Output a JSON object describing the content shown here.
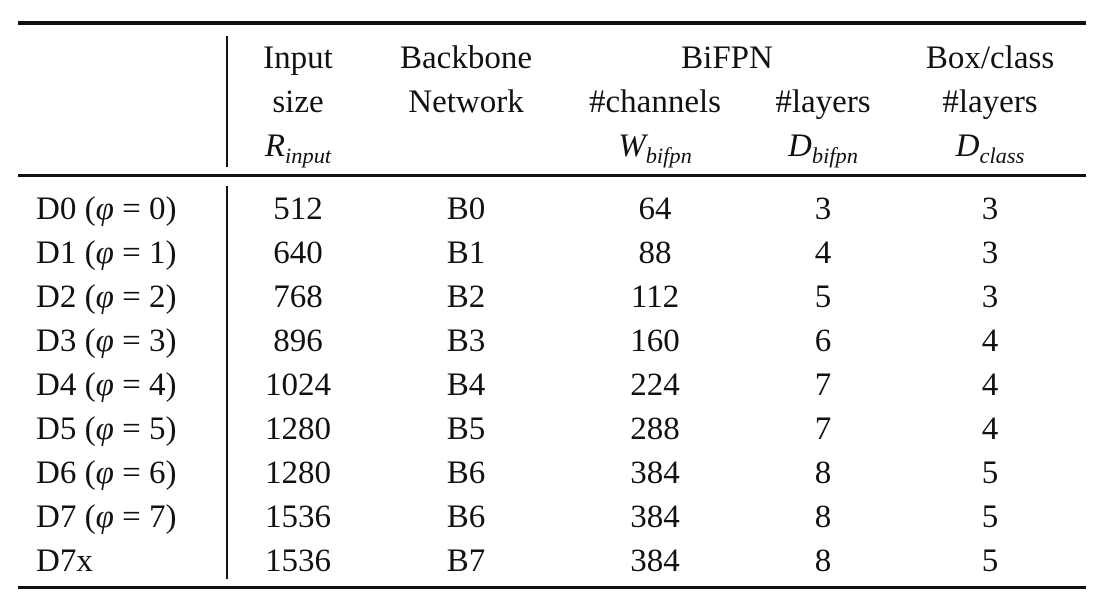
{
  "table": {
    "header": {
      "input": {
        "line1": "Input",
        "line2": "size",
        "sym": "R",
        "sub": "input"
      },
      "backbone": {
        "line1": "Backbone",
        "line2": "Network"
      },
      "bifpn": {
        "group": "BiFPN",
        "channels": {
          "label": "#channels",
          "sym": "W",
          "sub": "bifpn"
        },
        "layers": {
          "label": "#layers",
          "sym": "D",
          "sub": "bifpn"
        }
      },
      "boxclass": {
        "line1": "Box/class",
        "line2": "#layers",
        "sym": "D",
        "sub": "class"
      }
    },
    "rows": [
      {
        "model": "D0",
        "phi": "0",
        "input": "512",
        "backbone": "B0",
        "channels": "64",
        "bifpn_layers": "3",
        "class_layers": "3"
      },
      {
        "model": "D1",
        "phi": "1",
        "input": "640",
        "backbone": "B1",
        "channels": "88",
        "bifpn_layers": "4",
        "class_layers": "3"
      },
      {
        "model": "D2",
        "phi": "2",
        "input": "768",
        "backbone": "B2",
        "channels": "112",
        "bifpn_layers": "5",
        "class_layers": "3"
      },
      {
        "model": "D3",
        "phi": "3",
        "input": "896",
        "backbone": "B3",
        "channels": "160",
        "bifpn_layers": "6",
        "class_layers": "4"
      },
      {
        "model": "D4",
        "phi": "4",
        "input": "1024",
        "backbone": "B4",
        "channels": "224",
        "bifpn_layers": "7",
        "class_layers": "4"
      },
      {
        "model": "D5",
        "phi": "5",
        "input": "1280",
        "backbone": "B5",
        "channels": "288",
        "bifpn_layers": "7",
        "class_layers": "4"
      },
      {
        "model": "D6",
        "phi": "6",
        "input": "1280",
        "backbone": "B6",
        "channels": "384",
        "bifpn_layers": "8",
        "class_layers": "5"
      },
      {
        "model": "D7",
        "phi": "7",
        "input": "1536",
        "backbone": "B6",
        "channels": "384",
        "bifpn_layers": "8",
        "class_layers": "5"
      },
      {
        "model": "D7x",
        "phi": null,
        "input": "1536",
        "backbone": "B7",
        "channels": "384",
        "bifpn_layers": "8",
        "class_layers": "5"
      }
    ]
  }
}
